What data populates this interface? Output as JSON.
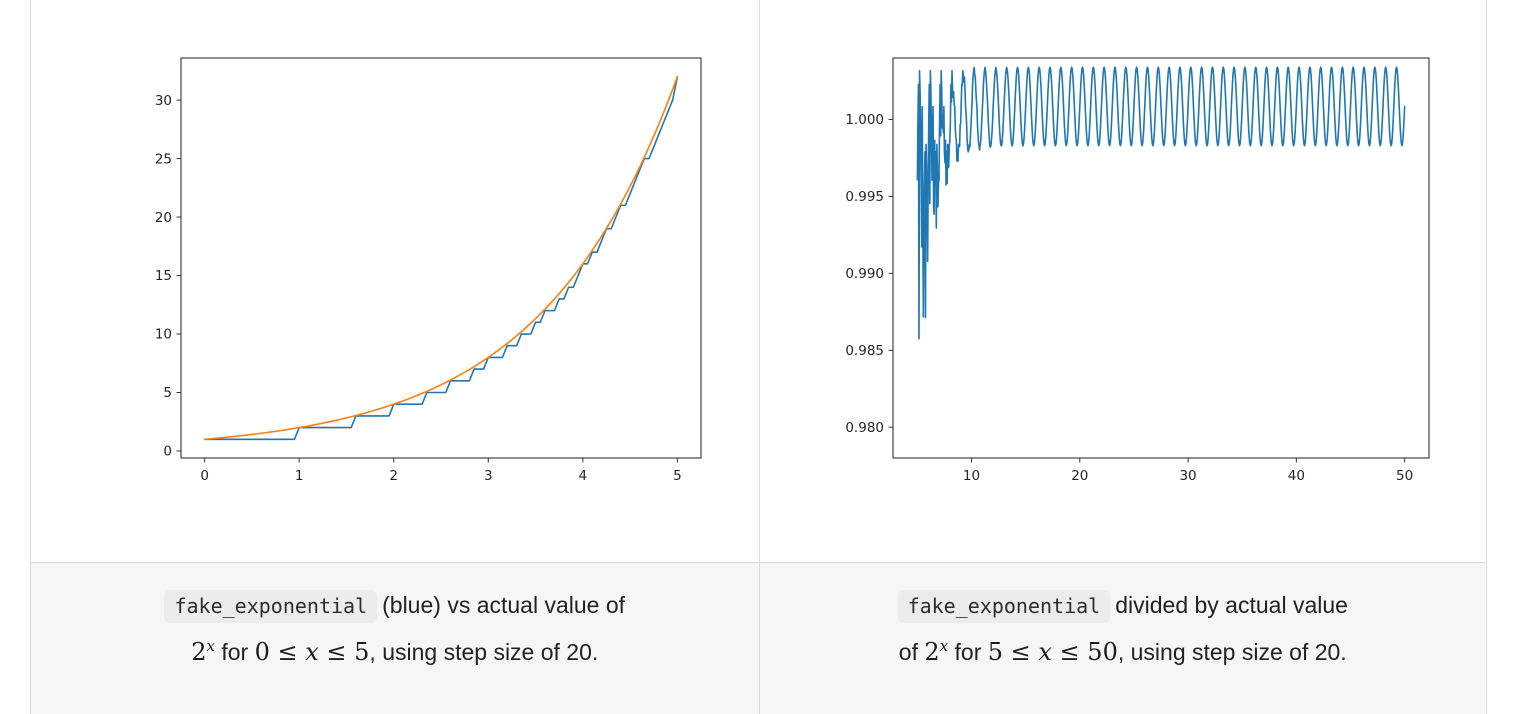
{
  "accent_colors": {
    "line_blue": "#1f77b4",
    "line_orange": "#ff7f0e",
    "axis": "#333333",
    "tick_label": "#262626",
    "caption_bg": "#f6f6f6",
    "chip_bg": "#ececec",
    "border": "#dadada"
  },
  "captions": {
    "left": {
      "code": "fake_exponential",
      "line1": "(blue) vs actual value of",
      "base": "2",
      "sup": "x",
      "t_for": " for ",
      "ineq_a": "0 ≤ ",
      "ineq_var": "x",
      "ineq_b": " ≤ 5",
      "tail": ", using step size of 20."
    },
    "right": {
      "code": "fake_exponential",
      "line1": "divided by actual value",
      "pre2": "of ",
      "base": "2",
      "sup": "x",
      "t_for": " for ",
      "ineq_a": "5 ≤ ",
      "ineq_var": "x",
      "ineq_b": " ≤ 50",
      "tail": ", using step size of 20."
    }
  },
  "chart_data": [
    {
      "type": "line",
      "panel": "left",
      "title": "",
      "xlabel": "",
      "ylabel": "",
      "xlim": [
        -0.25,
        5.25
      ],
      "ylim": [
        -0.6,
        33.6
      ],
      "xticks": [
        0,
        1,
        2,
        3,
        4,
        5
      ],
      "yticks": [
        0,
        5,
        10,
        15,
        20,
        25,
        30
      ],
      "grid": false,
      "legend": "none",
      "x_start": 0,
      "x_end": 5,
      "x_step": 0.05,
      "series": [
        {
          "name": "fake_exponential",
          "color": "#1f77b4",
          "model": "fake_exponential",
          "description": "integer-truncated staircase approximation of 2^x; flat integer steps 1,2,3,...,32 with risers just before x = log2(k)",
          "params": {
            "quant": 1,
            "osc_offset": 0.00085,
            "osc_amp": 0.00255
          }
        },
        {
          "name": "actual 2^x",
          "color": "#ff7f0e",
          "model": "pow2",
          "description": "smooth exponential 2^x from (0,1) to (5,32)",
          "params": {}
        }
      ]
    },
    {
      "type": "line",
      "panel": "right",
      "title": "",
      "xlabel": "",
      "ylabel": "",
      "xlim": [
        2.75,
        52.25
      ],
      "ylim": [
        0.978,
        1.004
      ],
      "xticks": [
        10,
        20,
        30,
        40,
        50
      ],
      "yticks": [
        0.98,
        0.985,
        0.99,
        0.995,
        1.0
      ],
      "ytick_labels": [
        "0.980",
        "0.985",
        "0.990",
        "0.995",
        "1.000"
      ],
      "grid": false,
      "legend": "none",
      "x_start": 5,
      "x_end": 50,
      "x_step": 0.05,
      "series": [
        {
          "name": "fake_exponential over actual",
          "color": "#1f77b4",
          "model": "fake_exponential_ratio",
          "description": "ratio fake_exponential/2^x: noisy quantization dips down to ~0.9795 for 5<=x<~9, settling into a regular period-1 oscillation between ~0.9983 and ~1.0034",
          "params": {
            "quant": 1.6,
            "osc_offset": 0.00085,
            "osc_amp": 0.00255
          }
        }
      ]
    }
  ]
}
